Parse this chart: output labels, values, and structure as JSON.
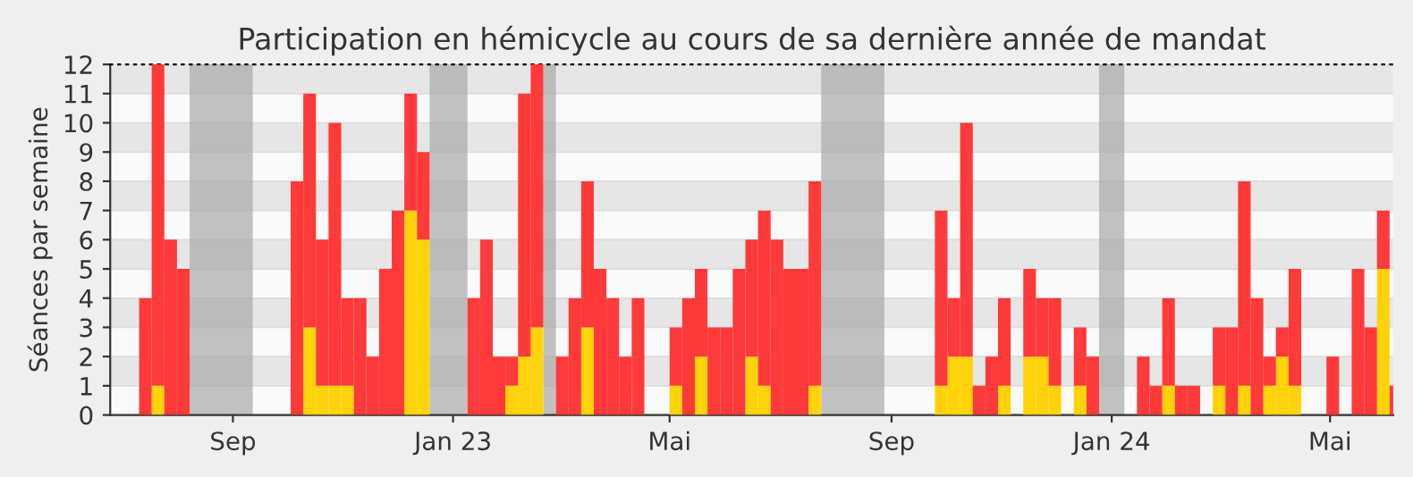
{
  "chart_data": {
    "type": "bar",
    "title": "Participation en hémicycle au cours de sa dernière année de mandat",
    "ylabel": "Séances par semaine",
    "x": [
      "2022-07-11",
      "2022-07-18",
      "2022-07-25",
      "2022-08-01",
      "2022-08-08",
      "2022-08-15",
      "2022-08-22",
      "2022-08-29",
      "2022-09-05",
      "2022-09-12",
      "2022-09-19",
      "2022-09-26",
      "2022-10-03",
      "2022-10-10",
      "2022-10-17",
      "2022-10-24",
      "2022-10-31",
      "2022-11-07",
      "2022-11-14",
      "2022-11-21",
      "2022-11-28",
      "2022-12-05",
      "2022-12-12",
      "2022-12-19",
      "2022-12-26",
      "2023-01-02",
      "2023-01-09",
      "2023-01-16",
      "2023-01-23",
      "2023-01-30",
      "2023-02-06",
      "2023-02-13",
      "2023-02-20",
      "2023-02-27",
      "2023-03-06",
      "2023-03-13",
      "2023-03-20",
      "2023-03-27",
      "2023-04-03",
      "2023-04-10",
      "2023-04-17",
      "2023-04-24",
      "2023-05-01",
      "2023-05-08",
      "2023-05-15",
      "2023-05-22",
      "2023-05-29",
      "2023-06-05",
      "2023-06-12",
      "2023-06-19",
      "2023-06-26",
      "2023-07-03",
      "2023-07-10",
      "2023-07-17",
      "2023-07-24",
      "2023-07-31",
      "2023-08-07",
      "2023-08-14",
      "2023-08-21",
      "2023-08-28",
      "2023-09-04",
      "2023-09-11",
      "2023-09-18",
      "2023-09-25",
      "2023-10-02",
      "2023-10-09",
      "2023-10-16",
      "2023-10-23",
      "2023-10-30",
      "2023-11-06",
      "2023-11-13",
      "2023-11-20",
      "2023-11-27",
      "2023-12-04",
      "2023-12-11",
      "2023-12-18",
      "2023-12-25",
      "2024-01-01",
      "2024-01-08",
      "2024-01-15",
      "2024-01-22",
      "2024-01-29",
      "2024-02-05",
      "2024-02-12",
      "2024-02-19",
      "2024-02-26",
      "2024-03-04",
      "2024-03-11",
      "2024-03-18",
      "2024-03-25",
      "2024-04-01",
      "2024-04-08",
      "2024-04-15",
      "2024-04-22",
      "2024-04-29",
      "2024-05-06",
      "2024-05-13",
      "2024-05-20",
      "2024-05-27",
      "2024-06-03"
    ],
    "series": [
      {
        "color": "#ffd20a",
        "values": [
          0,
          1,
          0,
          0,
          0,
          0,
          0,
          0,
          0,
          0,
          0,
          0,
          0,
          3,
          1,
          1,
          1,
          0,
          0,
          0,
          0,
          7,
          6,
          0,
          0,
          0,
          0,
          0,
          0,
          1,
          2,
          3,
          0,
          0,
          0,
          3,
          0,
          0,
          0,
          0,
          0,
          0,
          1,
          0,
          2,
          0,
          0,
          0,
          2,
          1,
          0,
          0,
          0,
          1,
          0,
          0,
          0,
          0,
          0,
          0,
          0,
          0,
          0,
          1,
          2,
          2,
          0,
          0,
          1,
          0,
          2,
          2,
          1,
          0,
          1,
          0,
          0,
          0,
          0,
          0,
          0,
          1,
          0,
          0,
          0,
          1,
          0,
          1,
          0,
          1,
          2,
          1,
          0,
          0,
          0,
          0,
          0,
          0,
          5,
          0
        ]
      },
      {
        "color": "#ff3a3a",
        "values": [
          4,
          11,
          6,
          5,
          0,
          0,
          0,
          0,
          0,
          0,
          0,
          0,
          8,
          8,
          5,
          9,
          3,
          4,
          2,
          5,
          7,
          4,
          3,
          0,
          0,
          0,
          4,
          6,
          2,
          1,
          9,
          9,
          0,
          2,
          4,
          5,
          5,
          4,
          2,
          4,
          0,
          0,
          2,
          4,
          3,
          3,
          3,
          5,
          4,
          6,
          6,
          5,
          5,
          7,
          0,
          0,
          0,
          0,
          0,
          0,
          0,
          0,
          0,
          6,
          2,
          8,
          1,
          2,
          3,
          0,
          3,
          2,
          3,
          0,
          2,
          2,
          0,
          0,
          0,
          2,
          1,
          3,
          1,
          1,
          0,
          2,
          3,
          7,
          4,
          1,
          1,
          4,
          0,
          0,
          2,
          0,
          5,
          3,
          2,
          1
        ]
      }
    ],
    "stacked": true,
    "bands": [
      {
        "axis": "x",
        "from": "2022-08-08",
        "to": "2022-09-12",
        "color": "#a8a8a8"
      },
      {
        "axis": "x",
        "from": "2022-12-19",
        "to": "2023-01-09",
        "color": "#a8a8a8"
      },
      {
        "axis": "x",
        "from": "2023-02-20",
        "to": "2023-02-27",
        "color": "#a8a8a8"
      },
      {
        "axis": "x",
        "from": "2023-07-24",
        "to": "2023-08-28",
        "color": "#a8a8a8"
      },
      {
        "axis": "x",
        "from": "2023-12-25",
        "to": "2024-01-08",
        "color": "#a8a8a8"
      }
    ],
    "xlim": [
      "2022-06-25",
      "2024-06-05"
    ],
    "xticks": [
      {
        "value": "2022-09-01",
        "label": "Sep"
      },
      {
        "value": "2023-01-01",
        "label": "Jan 23"
      },
      {
        "value": "2023-05-01",
        "label": "Mai"
      },
      {
        "value": "2023-09-01",
        "label": "Sep"
      },
      {
        "value": "2024-01-01",
        "label": "Jan 24"
      },
      {
        "value": "2024-05-01",
        "label": "Mai"
      }
    ],
    "ylim": [
      0,
      12
    ],
    "yticks": [
      0,
      1,
      2,
      3,
      4,
      5,
      6,
      7,
      8,
      9,
      10,
      11,
      12
    ],
    "grid": "y",
    "legend": false
  }
}
